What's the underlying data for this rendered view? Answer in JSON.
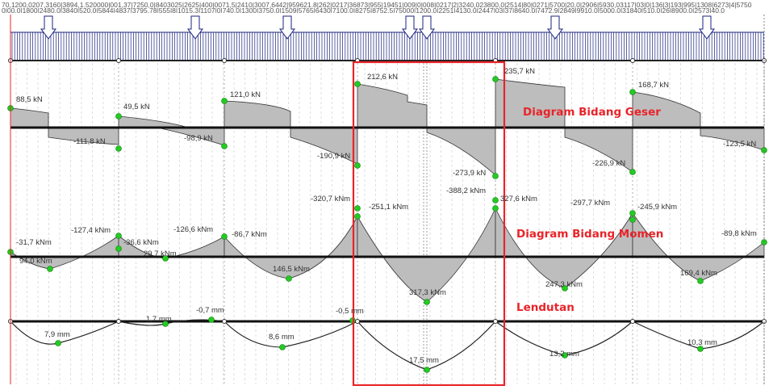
{
  "top_labels": {
    "row1": "70,1200,0207,3160|3894,1.520000|001,37|7250,0|8403025|2625|400|0071,5|2410|3007,6442|959621.8|262|0217|36873|955|19451|009|0|008|0217|2|3240,023800,0|2514|80|0271|5700|20,0|2906|5930,03117|03|0|136|3|193|995|1308|6273|4|5750",
    "row2": "0|00,0|1800|2480,0|3840|520,0|5844|4837|3795,78|555|8|1015,3|1107|0|740,0|1300|3750,0|1509|5765|6430|7100,0|8275|8752,5|75000|1200,0|2251|4130,0|2447|03|37|8640,0|7472,9|2849|9910,0|5000,0|31840|510,0|26|8900,0|2573|40,0"
  },
  "annotations": {
    "shear_title": "Diagram Bidang Geser",
    "moment_title": "Diagram Bidang Momen",
    "deflection_title": "Lendutan"
  },
  "shear_labels": [
    "88,5 kN",
    "49,5 kN",
    "121,0 kN",
    "212,6 kN",
    "235,7 kN",
    "168,7 kN",
    "-111,8 kN",
    "-98,9 kN",
    "-190,9 kN",
    "-273,9 kN",
    "-226,9 kN",
    "-123,5 kN"
  ],
  "moment_labels": [
    "-320,7 kNm",
    "-388,2 kNm",
    "327,6 kNm",
    "-297,7 kNm",
    "-251,1 kNm",
    "-245,9 kNm",
    "-127,4 kNm",
    "-126,6 kNm",
    "-31,7 kNm",
    "-36,6 kNm",
    "-86,7 kNm",
    "-89,8 kNm",
    "94,0 kNm",
    "29,7 kNm",
    "146,5 kNm",
    "317,3 kNm",
    "247,3 kNm",
    "169,4 kNm"
  ],
  "deflection_labels": [
    "1,7 mm",
    "-0,7 mm",
    "-0,5 mm",
    "7,9 mm",
    "8,6 mm",
    "17,5 mm",
    "13,2 mm",
    "10,3 mm"
  ],
  "colors": {
    "highlight": "#e8242a",
    "fill": "#bdbdbd",
    "node": "#22cc22",
    "load": "#1a237e"
  }
}
